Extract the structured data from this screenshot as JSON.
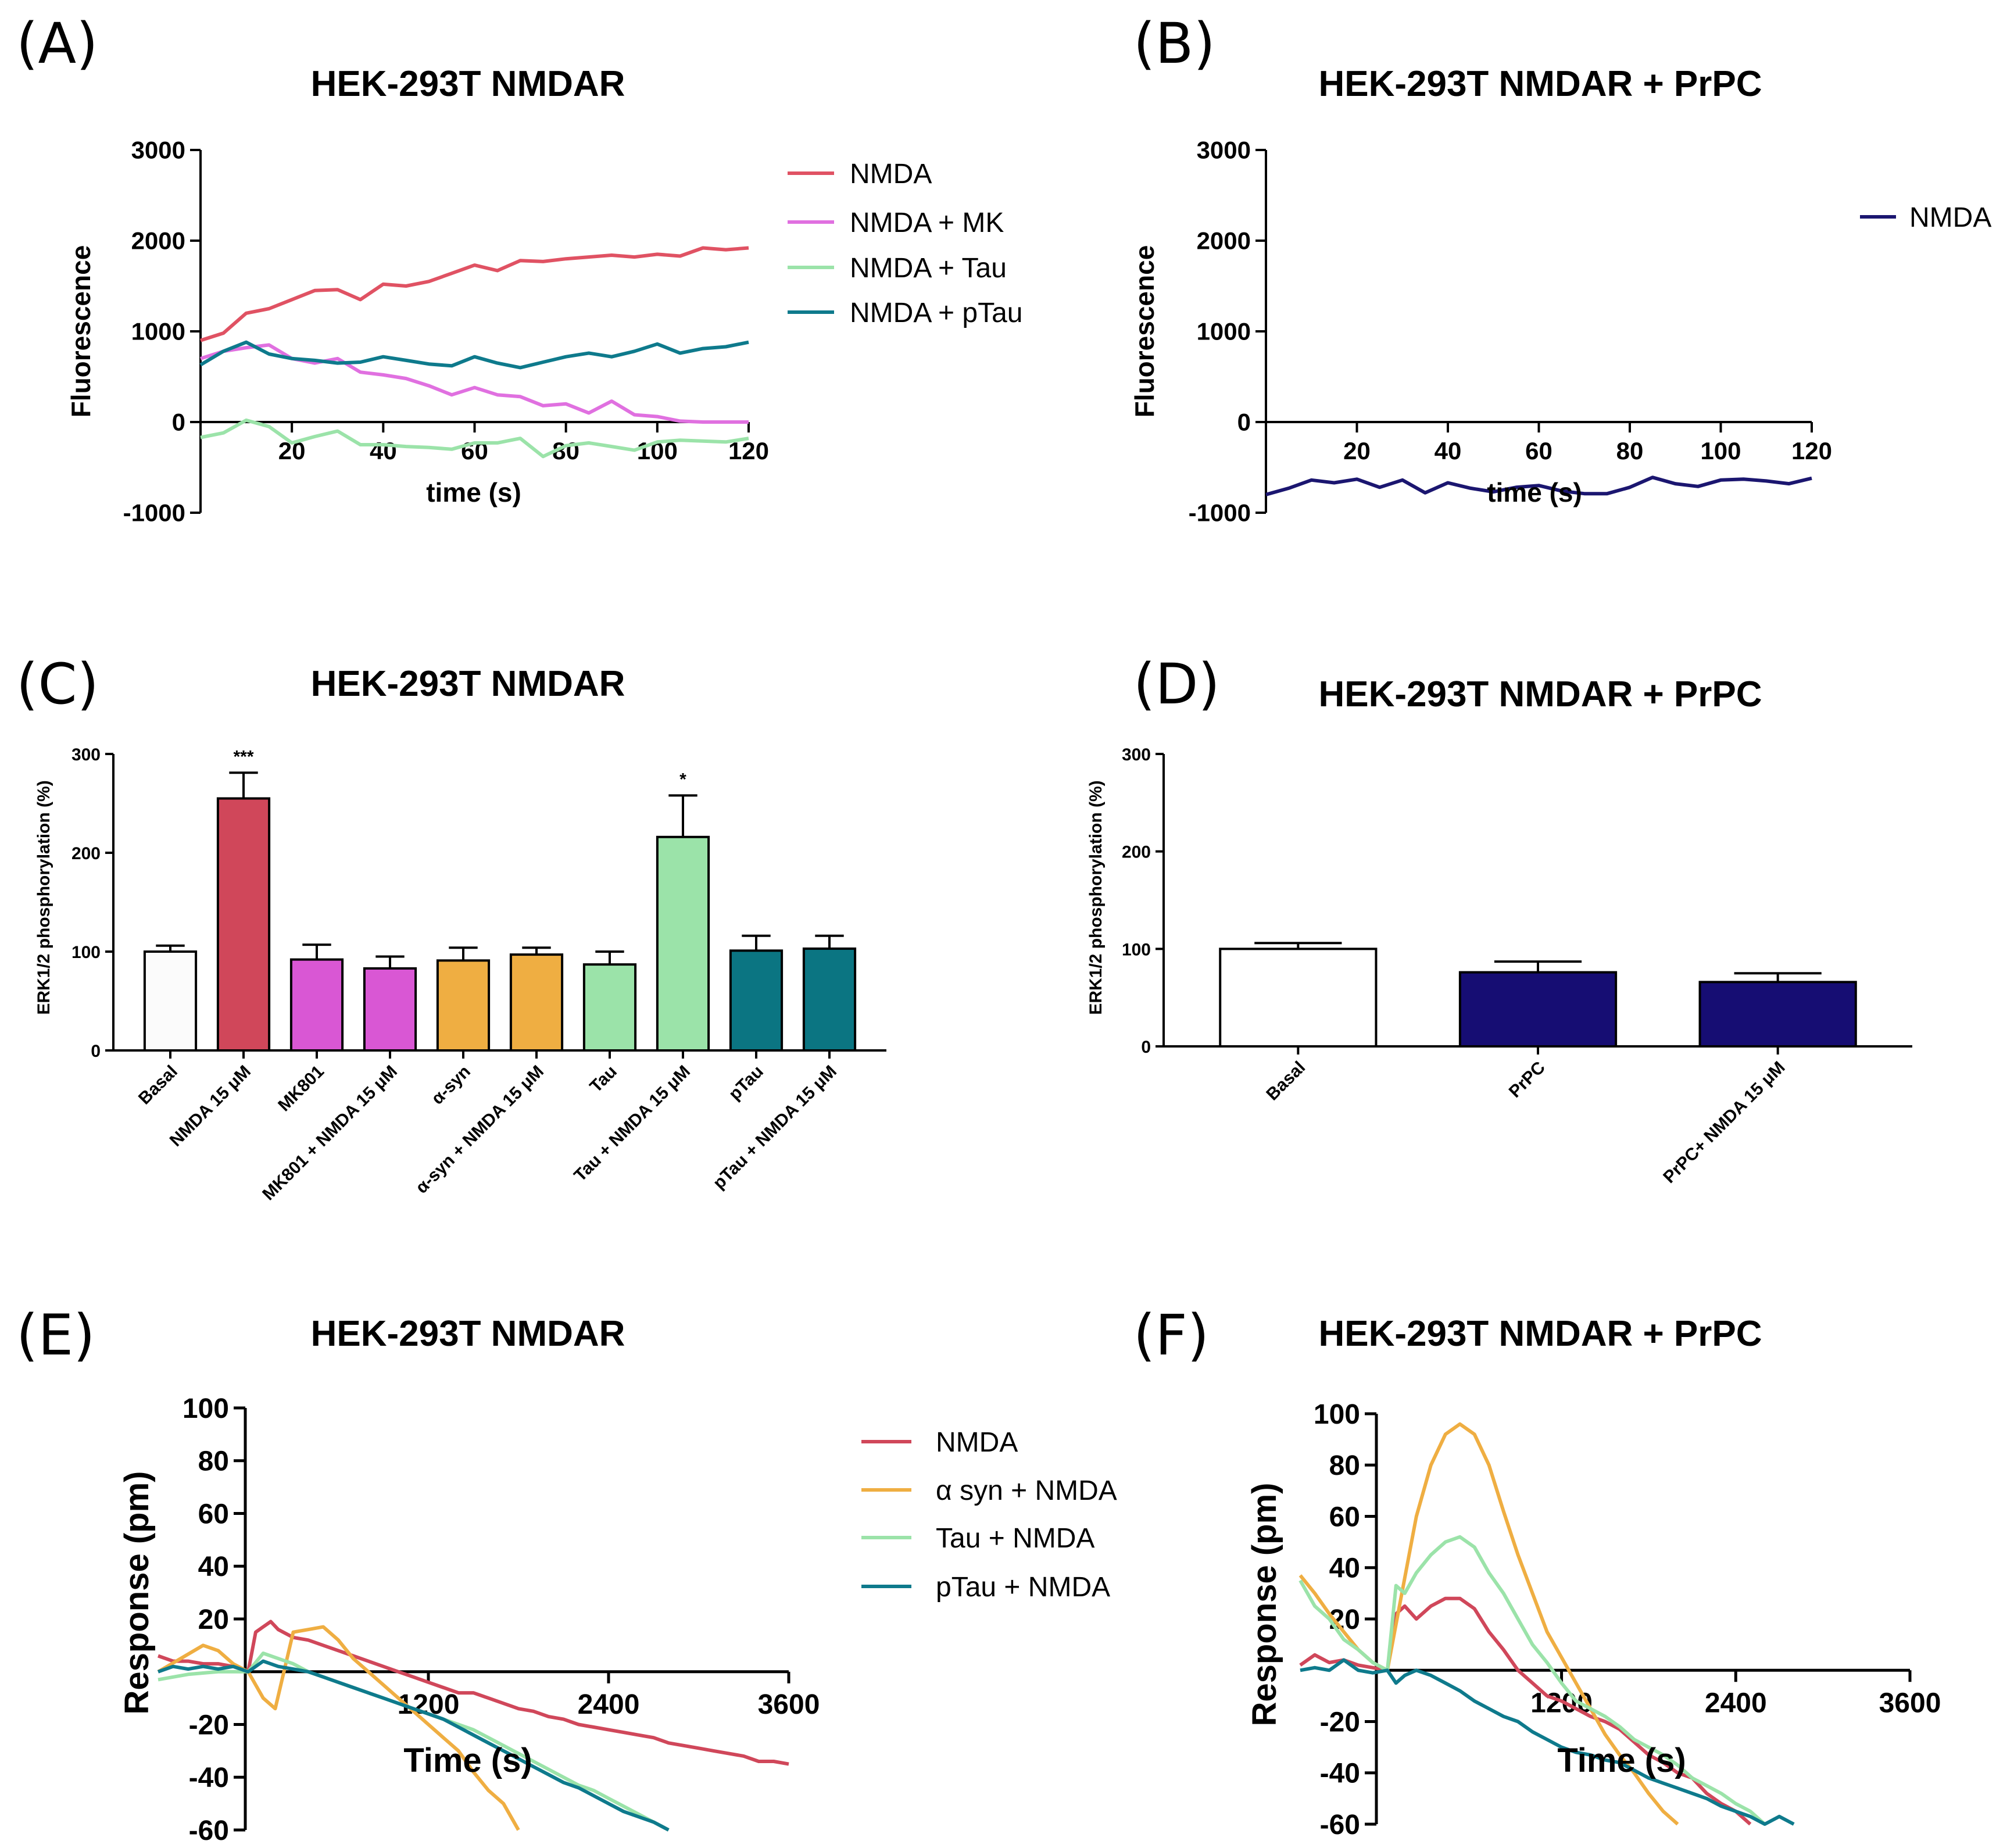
{
  "chart_data": [
    {
      "panel": "(A)",
      "type": "line",
      "title": "HEK-293T NMDAR",
      "xlabel": "time (s)",
      "ylabel": "Fluorescence",
      "xlim": [
        0,
        120
      ],
      "ylim": [
        -1000,
        3000
      ],
      "xticks": [
        "20",
        "40",
        "60",
        "80",
        "100",
        "120"
      ],
      "yticks": [
        "3000",
        "2000",
        "1000",
        "0",
        "-1000"
      ],
      "x": [
        0,
        5,
        10,
        15,
        20,
        25,
        30,
        35,
        40,
        45,
        50,
        55,
        60,
        65,
        70,
        75,
        80,
        85,
        90,
        95,
        100,
        105,
        110,
        115,
        120
      ],
      "series": [
        {
          "name": "NMDA",
          "color": "#e05263",
          "values": [
            900,
            980,
            1200,
            1250,
            1350,
            1450,
            1460,
            1350,
            1520,
            1500,
            1550,
            1640,
            1730,
            1670,
            1780,
            1770,
            1800,
            1820,
            1840,
            1820,
            1850,
            1830,
            1920,
            1900,
            1920
          ]
        },
        {
          "name": "NMDA + MK",
          "color": "#e070e0",
          "values": [
            700,
            780,
            820,
            850,
            700,
            650,
            700,
            550,
            520,
            480,
            400,
            300,
            380,
            300,
            280,
            180,
            200,
            100,
            230,
            80,
            60,
            10,
            0,
            0,
            0
          ]
        },
        {
          "name": "NMDA + Tau",
          "color": "#9be3a9",
          "values": [
            -170,
            -120,
            20,
            -50,
            -230,
            -160,
            -100,
            -250,
            -250,
            -270,
            -280,
            -300,
            -230,
            -230,
            -180,
            -380,
            -260,
            -230,
            -270,
            -310,
            -220,
            -200,
            -210,
            -220,
            -180
          ]
        },
        {
          "name": "NMDA + pTau",
          "color": "#0e7a8c",
          "values": [
            630,
            780,
            880,
            750,
            700,
            680,
            650,
            660,
            720,
            680,
            640,
            620,
            720,
            650,
            600,
            660,
            720,
            760,
            720,
            780,
            860,
            760,
            810,
            830,
            880
          ]
        }
      ]
    },
    {
      "panel": "(B)",
      "type": "line",
      "title": "HEK-293T NMDAR + PrPC",
      "xlabel": "time (s)",
      "ylabel": "Fluorescence",
      "xlim": [
        0,
        120
      ],
      "ylim": [
        -1000,
        3000
      ],
      "xticks": [
        "20",
        "40",
        "60",
        "80",
        "100",
        "120"
      ],
      "yticks": [
        "3000",
        "2000",
        "1000",
        "0",
        "-1000"
      ],
      "x": [
        0,
        5,
        10,
        15,
        20,
        25,
        30,
        35,
        40,
        45,
        50,
        55,
        60,
        65,
        70,
        75,
        80,
        85,
        90,
        95,
        100,
        105,
        110,
        115,
        120
      ],
      "series": [
        {
          "name": "NMDA",
          "color": "#1b1670",
          "values": [
            -800,
            -730,
            -640,
            -670,
            -630,
            -720,
            -640,
            -780,
            -670,
            -730,
            -770,
            -720,
            -700,
            -760,
            -790,
            -790,
            -720,
            -610,
            -680,
            -710,
            -640,
            -630,
            -650,
            -680,
            -620
          ]
        }
      ]
    },
    {
      "panel": "(C)",
      "type": "bar",
      "title": "HEK-293T NMDAR",
      "ylabel": "ERK1/2 phosphorylation (%)",
      "ylim": [
        0,
        300
      ],
      "yticks": [
        "300",
        "200",
        "100",
        "0"
      ],
      "categories": [
        "Basal",
        "NMDA 15 μM",
        "MK801",
        "MK801 + NMDA 15 μM",
        "α-syn",
        "α-syn + NMDA 15 μM",
        "Tau",
        "Tau + NMDA 15 μM",
        "pTau",
        "pTau + NMDA 15 μM"
      ],
      "values": [
        100,
        255,
        92,
        83,
        91,
        97,
        87,
        216,
        101,
        103
      ],
      "errors": [
        6,
        26,
        15,
        12,
        13,
        7,
        13,
        42,
        15,
        13
      ],
      "colors": [
        "#fbfbfb",
        "#d0475a",
        "#d957d4",
        "#d957d4",
        "#efae42",
        "#efae42",
        "#9be3a9",
        "#9be3a9",
        "#0b7582",
        "#0b7582"
      ],
      "annotations": [
        "",
        "***",
        "",
        "",
        "",
        "",
        "",
        "*",
        "",
        ""
      ]
    },
    {
      "panel": "(D)",
      "type": "bar",
      "title": "HEK-293T NMDAR + PrPC",
      "ylabel": "ERK1/2 phosphorylation (%)",
      "ylim": [
        0,
        300
      ],
      "yticks": [
        "300",
        "200",
        "100",
        "0"
      ],
      "categories": [
        "Basal",
        "PrPC",
        "PrPC+ NMDA 15 μM"
      ],
      "values": [
        100,
        76,
        66
      ],
      "errors": [
        6,
        11,
        9
      ],
      "colors": [
        "#ffffff",
        "#160d73",
        "#160d73"
      ]
    },
    {
      "panel": "(E)",
      "type": "line",
      "title": "HEK-293T NMDAR",
      "xlabel": "Time (s)",
      "ylabel": "Response (pm)",
      "xlim": [
        -600,
        3600
      ],
      "ylim": [
        -60,
        100
      ],
      "xticks": [
        "1200",
        "2400",
        "3600"
      ],
      "yticks": [
        "100",
        "80",
        "60",
        "40",
        "20",
        "-20",
        "-40",
        "-60"
      ],
      "series": [
        {
          "name": "NMDA",
          "color": "#d0475a",
          "x": [
            -600,
            -500,
            -400,
            -300,
            -200,
            -100,
            0,
            50,
            100,
            150,
            200,
            300,
            400,
            500,
            600,
            700,
            800,
            900,
            1000,
            1100,
            1200,
            1300,
            1400,
            1500,
            1600,
            1700,
            1800,
            1900,
            2000,
            2100,
            2200,
            2300,
            2400,
            2500,
            2600,
            2700,
            2800,
            2900,
            3000,
            3100,
            3200,
            3300,
            3400,
            3500,
            3600
          ],
          "y": [
            6,
            4,
            4,
            3,
            3,
            2,
            0,
            15,
            17,
            19,
            16,
            13,
            12,
            10,
            8,
            6,
            4,
            2,
            0,
            -2,
            -4,
            -6,
            -8,
            -8,
            -10,
            -12,
            -14,
            -15,
            -17,
            -18,
            -20,
            -21,
            -22,
            -23,
            -24,
            -25,
            -27,
            -28,
            -29,
            -30,
            -31,
            -32,
            -34,
            -34,
            -35
          ]
        },
        {
          "name": "α syn + NMDA",
          "color": "#efae42",
          "x": [
            -600,
            -450,
            -300,
            -200,
            -100,
            0,
            100,
            180,
            300,
            400,
            500,
            600,
            700,
            800,
            900,
            1000,
            1100,
            1200,
            1300,
            1400,
            1500,
            1600,
            1700,
            1800
          ],
          "y": [
            0,
            5,
            10,
            8,
            3,
            0,
            -10,
            -14,
            15,
            16,
            17,
            12,
            5,
            0,
            -5,
            -10,
            -15,
            -20,
            -25,
            -30,
            -38,
            -45,
            -50,
            -60
          ]
        },
        {
          "name": "Tau + NMDA",
          "color": "#9be3a9",
          "x": [
            -600,
            -400,
            -200,
            0,
            100,
            200,
            300,
            400,
            500,
            600,
            700,
            800,
            900,
            1000,
            1100,
            1200,
            1300,
            1400,
            1500,
            1600,
            1700,
            1800,
            1900,
            2000,
            2100,
            2200,
            2300,
            2400,
            2500,
            2600,
            2700,
            2800
          ],
          "y": [
            -3,
            -1,
            0,
            0,
            7,
            5,
            3,
            0,
            -2,
            -4,
            -6,
            -8,
            -10,
            -12,
            -14,
            -16,
            -18,
            -20,
            -22,
            -25,
            -28,
            -31,
            -34,
            -37,
            -40,
            -43,
            -45,
            -48,
            -51,
            -54,
            -57,
            -60
          ]
        },
        {
          "name": "pTau + NMDA",
          "color": "#0e7a8c",
          "x": [
            -600,
            -500,
            -400,
            -300,
            -200,
            -100,
            0,
            100,
            200,
            300,
            400,
            500,
            600,
            700,
            800,
            900,
            1000,
            1100,
            1200,
            1300,
            1400,
            1500,
            1600,
            1700,
            1800,
            1900,
            2000,
            2100,
            2200,
            2300,
            2400,
            2500,
            2600,
            2700,
            2800
          ],
          "y": [
            0,
            2,
            1,
            2,
            1,
            2,
            0,
            4,
            2,
            1,
            0,
            -2,
            -4,
            -6,
            -8,
            -10,
            -12,
            -14,
            -16,
            -18,
            -21,
            -24,
            -27,
            -30,
            -33,
            -36,
            -39,
            -42,
            -44,
            -47,
            -50,
            -53,
            -55,
            -57,
            -60
          ]
        }
      ]
    },
    {
      "panel": "(F)",
      "type": "line",
      "title": "HEK-293T NMDAR + PrPC",
      "xlabel": "Time (s)",
      "ylabel": "Response (pm)",
      "xlim": [
        -600,
        3600
      ],
      "ylim": [
        -60,
        100
      ],
      "xticks": [
        "1200",
        "2400",
        "3600"
      ],
      "yticks": [
        "100",
        "80",
        "60",
        "40",
        "20",
        "-20",
        "-40",
        "-60"
      ],
      "series": [
        {
          "name": "NMDA",
          "color": "#d0475a",
          "x": [
            -600,
            -500,
            -400,
            -300,
            -200,
            -100,
            0,
            60,
            120,
            200,
            300,
            400,
            500,
            600,
            700,
            800,
            900,
            1000,
            1100,
            1200,
            1300,
            1400,
            1500,
            1600,
            1700,
            1800,
            1900,
            2000,
            2100,
            2200,
            2300,
            2400,
            2500
          ],
          "y": [
            2,
            6,
            3,
            4,
            2,
            1,
            0,
            22,
            25,
            20,
            25,
            28,
            28,
            24,
            15,
            8,
            0,
            -5,
            -10,
            -12,
            -15,
            -18,
            -20,
            -23,
            -28,
            -33,
            -36,
            -40,
            -42,
            -48,
            -52,
            -55,
            -60
          ]
        },
        {
          "name": "α syn + NMDA",
          "color": "#efae42",
          "x": [
            -600,
            -500,
            -400,
            -300,
            -200,
            -100,
            0,
            100,
            200,
            300,
            400,
            500,
            600,
            700,
            800,
            900,
            1000,
            1100,
            1200,
            1300,
            1400,
            1500,
            1600,
            1700,
            1800,
            1900,
            2000
          ],
          "y": [
            37,
            30,
            22,
            15,
            8,
            3,
            0,
            30,
            60,
            80,
            92,
            96,
            92,
            80,
            62,
            45,
            30,
            15,
            5,
            -5,
            -15,
            -25,
            -33,
            -40,
            -48,
            -55,
            -60
          ]
        },
        {
          "name": "Tau + NMDA",
          "color": "#9be3a9",
          "x": [
            -600,
            -500,
            -400,
            -300,
            -200,
            -100,
            0,
            60,
            120,
            200,
            300,
            400,
            500,
            600,
            700,
            800,
            900,
            1000,
            1100,
            1200,
            1300,
            1400,
            1500,
            1600,
            1700,
            1800,
            1900,
            2000,
            2100,
            2200,
            2300,
            2400,
            2500,
            2600
          ],
          "y": [
            35,
            25,
            20,
            12,
            8,
            3,
            0,
            33,
            30,
            38,
            45,
            50,
            52,
            48,
            38,
            30,
            20,
            10,
            3,
            -5,
            -12,
            -15,
            -18,
            -22,
            -27,
            -30,
            -33,
            -37,
            -42,
            -45,
            -48,
            -52,
            -55,
            -60
          ]
        },
        {
          "name": "pTau + NMDA",
          "color": "#0e7a8c",
          "x": [
            -600,
            -500,
            -400,
            -300,
            -200,
            -100,
            0,
            60,
            120,
            200,
            300,
            400,
            500,
            600,
            700,
            800,
            900,
            1000,
            1100,
            1200,
            1300,
            1400,
            1500,
            1600,
            1700,
            1800,
            1900,
            2000,
            2100,
            2200,
            2300,
            2400,
            2500,
            2600,
            2700,
            2800
          ],
          "y": [
            0,
            1,
            0,
            4,
            0,
            -1,
            0,
            -5,
            -2,
            0,
            -2,
            -5,
            -8,
            -12,
            -15,
            -18,
            -20,
            -24,
            -27,
            -30,
            -32,
            -33,
            -35,
            -36,
            -39,
            -42,
            -44,
            -46,
            -48,
            -50,
            -53,
            -55,
            -57,
            -60,
            -57,
            -60
          ]
        }
      ]
    }
  ]
}
